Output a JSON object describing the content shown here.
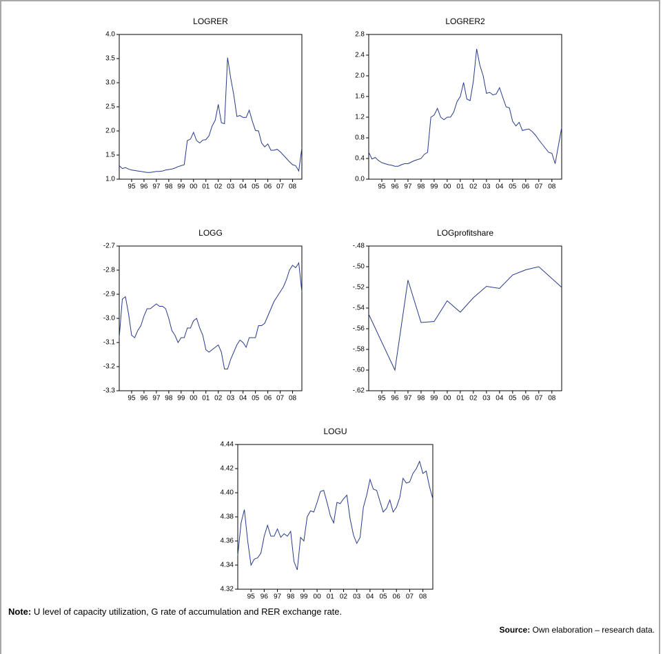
{
  "chart_data": [
    {
      "type": "line",
      "title": "LOGRER",
      "color": "#27398a",
      "x": [
        1994,
        1994.25,
        1994.5,
        1994.75,
        1995,
        1995.25,
        1995.5,
        1995.75,
        1996,
        1996.25,
        1996.5,
        1996.75,
        1997,
        1997.25,
        1997.5,
        1997.75,
        1998,
        1998.25,
        1998.5,
        1998.75,
        1999,
        1999.25,
        1999.5,
        1999.75,
        2000,
        2000.25,
        2000.5,
        2000.75,
        2001,
        2001.25,
        2001.5,
        2001.75,
        2002,
        2002.25,
        2002.5,
        2002.75,
        2003,
        2003.25,
        2003.5,
        2003.75,
        2004,
        2004.25,
        2004.5,
        2004.75,
        2005,
        2005.25,
        2005.5,
        2005.75,
        2006,
        2006.25,
        2006.5,
        2006.75,
        2007,
        2007.25,
        2007.5,
        2007.75,
        2008,
        2008.25,
        2008.5,
        2008.75
      ],
      "values": [
        1.28,
        1.22,
        1.24,
        1.21,
        1.19,
        1.18,
        1.17,
        1.16,
        1.15,
        1.14,
        1.14,
        1.15,
        1.16,
        1.16,
        1.17,
        1.19,
        1.2,
        1.21,
        1.23,
        1.26,
        1.28,
        1.3,
        1.8,
        1.83,
        1.97,
        1.8,
        1.75,
        1.81,
        1.82,
        1.9,
        2.1,
        2.22,
        2.55,
        2.17,
        2.15,
        3.52,
        3.1,
        2.75,
        2.3,
        2.32,
        2.28,
        2.28,
        2.43,
        2.2,
        2.01,
        2.0,
        1.75,
        1.67,
        1.73,
        1.6,
        1.6,
        1.62,
        1.57,
        1.5,
        1.43,
        1.36,
        1.3,
        1.28,
        1.17,
        1.65
      ],
      "ylim": [
        1.0,
        4.0
      ],
      "yticks": [
        {
          "value": 1.0,
          "label": "1.0"
        },
        1.5,
        {
          "value": 2.0,
          "label": "2.0"
        },
        2.5,
        {
          "value": 3.0,
          "label": "3.0"
        },
        3.5,
        {
          "value": 4.0,
          "label": "4.0"
        }
      ],
      "xlim": [
        1994,
        2008.75
      ],
      "xticks": [
        {
          "value": 1995,
          "label": "95"
        },
        {
          "value": 1996,
          "label": "96"
        },
        {
          "value": 1997,
          "label": "97"
        },
        {
          "value": 1998,
          "label": "98"
        },
        {
          "value": 1999,
          "label": "99"
        },
        {
          "value": 2000,
          "label": "00"
        },
        {
          "value": 2001,
          "label": "01"
        },
        {
          "value": 2002,
          "label": "02"
        },
        {
          "value": 2003,
          "label": "03"
        },
        {
          "value": 2004,
          "label": "04"
        },
        {
          "value": 2005,
          "label": "05"
        },
        {
          "value": 2006,
          "label": "06"
        },
        {
          "value": 2007,
          "label": "07"
        },
        {
          "value": 2008,
          "label": "08"
        }
      ]
    },
    {
      "type": "line",
      "title": "LOGRER2",
      "color": "#27398a",
      "x": [
        1994,
        1994.25,
        1994.5,
        1994.75,
        1995,
        1995.25,
        1995.5,
        1995.75,
        1996,
        1996.25,
        1996.5,
        1996.75,
        1997,
        1997.25,
        1997.5,
        1997.75,
        1998,
        1998.25,
        1998.5,
        1998.75,
        1999,
        1999.25,
        1999.5,
        1999.75,
        2000,
        2000.25,
        2000.5,
        2000.75,
        2001,
        2001.25,
        2001.5,
        2001.75,
        2002,
        2002.25,
        2002.5,
        2002.75,
        2003,
        2003.25,
        2003.5,
        2003.75,
        2004,
        2004.25,
        2004.5,
        2004.75,
        2005,
        2005.25,
        2005.5,
        2005.75,
        2006,
        2006.25,
        2006.5,
        2006.75,
        2007,
        2007.25,
        2007.5,
        2007.75,
        2008,
        2008.25,
        2008.5,
        2008.75
      ],
      "values": [
        0.52,
        0.39,
        0.42,
        0.36,
        0.32,
        0.3,
        0.28,
        0.27,
        0.25,
        0.25,
        0.28,
        0.3,
        0.3,
        0.33,
        0.36,
        0.38,
        0.4,
        0.48,
        0.52,
        1.2,
        1.24,
        1.37,
        1.2,
        1.15,
        1.2,
        1.2,
        1.3,
        1.5,
        1.6,
        1.87,
        1.55,
        1.52,
        1.9,
        2.52,
        2.2,
        2.0,
        1.66,
        1.68,
        1.63,
        1.65,
        1.77,
        1.58,
        1.4,
        1.38,
        1.12,
        1.03,
        1.1,
        0.94,
        0.96,
        0.97,
        0.92,
        0.85,
        0.76,
        0.68,
        0.6,
        0.52,
        0.5,
        0.3,
        0.65,
        1.0
      ],
      "ylim": [
        0.0,
        2.8
      ],
      "yticks": [
        {
          "value": 0.0,
          "label": "0.0"
        },
        0.4,
        0.8,
        1.2,
        1.6,
        {
          "value": 2.0,
          "label": "2.0"
        },
        2.4,
        2.8
      ],
      "xlim": [
        1994,
        2008.75
      ],
      "xticks": [
        {
          "value": 1995,
          "label": "95"
        },
        {
          "value": 1996,
          "label": "96"
        },
        {
          "value": 1997,
          "label": "97"
        },
        {
          "value": 1998,
          "label": "98"
        },
        {
          "value": 1999,
          "label": "99"
        },
        {
          "value": 2000,
          "label": "00"
        },
        {
          "value": 2001,
          "label": "01"
        },
        {
          "value": 2002,
          "label": "02"
        },
        {
          "value": 2003,
          "label": "03"
        },
        {
          "value": 2004,
          "label": "04"
        },
        {
          "value": 2005,
          "label": "05"
        },
        {
          "value": 2006,
          "label": "06"
        },
        {
          "value": 2007,
          "label": "07"
        },
        {
          "value": 2008,
          "label": "08"
        }
      ]
    },
    {
      "type": "line",
      "title": "LOGG",
      "color": "#27398a",
      "x": [
        1994,
        1994.25,
        1994.5,
        1994.75,
        1995,
        1995.25,
        1995.5,
        1995.75,
        1996,
        1996.25,
        1996.5,
        1996.75,
        1997,
        1997.25,
        1997.5,
        1997.75,
        1998,
        1998.25,
        1998.5,
        1998.75,
        1999,
        1999.25,
        1999.5,
        1999.75,
        2000,
        2000.25,
        2000.5,
        2000.75,
        2001,
        2001.25,
        2001.5,
        2001.75,
        2002,
        2002.25,
        2002.5,
        2002.75,
        2003,
        2003.25,
        2003.5,
        2003.75,
        2004,
        2004.25,
        2004.5,
        2004.75,
        2005,
        2005.25,
        2005.5,
        2005.75,
        2006,
        2006.25,
        2006.5,
        2006.75,
        2007,
        2007.25,
        2007.5,
        2007.75,
        2008,
        2008.25,
        2008.5,
        2008.75
      ],
      "values": [
        -3.08,
        -2.92,
        -2.91,
        -2.98,
        -3.07,
        -3.08,
        -3.05,
        -3.03,
        -2.99,
        -2.96,
        -2.96,
        -2.95,
        -2.94,
        -2.95,
        -2.95,
        -2.96,
        -3.0,
        -3.05,
        -3.07,
        -3.1,
        -3.08,
        -3.08,
        -3.04,
        -3.04,
        -3.01,
        -3.0,
        -3.04,
        -3.07,
        -3.13,
        -3.14,
        -3.13,
        -3.12,
        -3.11,
        -3.14,
        -3.21,
        -3.21,
        -3.17,
        -3.14,
        -3.11,
        -3.09,
        -3.1,
        -3.12,
        -3.08,
        -3.08,
        -3.08,
        -3.03,
        -3.03,
        -3.02,
        -2.99,
        -2.96,
        -2.93,
        -2.91,
        -2.89,
        -2.87,
        -2.84,
        -2.8,
        -2.78,
        -2.79,
        -2.77,
        -2.89
      ],
      "ylim": [
        -3.3,
        -2.7
      ],
      "yticks": [
        -3.3,
        -3.2,
        -3.1,
        {
          "value": -3.0,
          "label": "-3.0"
        },
        -2.9,
        -2.8,
        -2.7
      ],
      "xlim": [
        1994,
        2008.75
      ],
      "xticks": [
        {
          "value": 1995,
          "label": "95"
        },
        {
          "value": 1996,
          "label": "96"
        },
        {
          "value": 1997,
          "label": "97"
        },
        {
          "value": 1998,
          "label": "98"
        },
        {
          "value": 1999,
          "label": "99"
        },
        {
          "value": 2000,
          "label": "00"
        },
        {
          "value": 2001,
          "label": "01"
        },
        {
          "value": 2002,
          "label": "02"
        },
        {
          "value": 2003,
          "label": "03"
        },
        {
          "value": 2004,
          "label": "04"
        },
        {
          "value": 2005,
          "label": "05"
        },
        {
          "value": 2006,
          "label": "06"
        },
        {
          "value": 2007,
          "label": "07"
        },
        {
          "value": 2008,
          "label": "08"
        }
      ]
    },
    {
      "type": "line",
      "title": "LOGprofitshare",
      "color": "#27398a",
      "x": [
        1994,
        1996,
        1997,
        1998,
        1999,
        2000,
        2001,
        2002,
        2003,
        2004,
        2005,
        2006,
        2007,
        2008.75
      ],
      "values": [
        -0.546,
        -0.6,
        -0.513,
        -0.554,
        -0.553,
        -0.533,
        -0.544,
        -0.53,
        -0.519,
        -0.521,
        -0.508,
        -0.503,
        -0.5,
        -0.52
      ],
      "ylim": [
        -0.62,
        -0.48
      ],
      "yticks": [
        {
          "value": -0.62,
          "label": "-.62"
        },
        {
          "value": -0.6,
          "label": "-.60"
        },
        {
          "value": -0.58,
          "label": "-.58"
        },
        {
          "value": -0.56,
          "label": "-.56"
        },
        {
          "value": -0.54,
          "label": "-.54"
        },
        {
          "value": -0.52,
          "label": "-.52"
        },
        {
          "value": -0.5,
          "label": "-.50"
        },
        {
          "value": -0.48,
          "label": "-.48"
        }
      ],
      "xlim": [
        1994,
        2008.75
      ],
      "xticks": [
        {
          "value": 1995,
          "label": "95"
        },
        {
          "value": 1996,
          "label": "96"
        },
        {
          "value": 1997,
          "label": "97"
        },
        {
          "value": 1998,
          "label": "98"
        },
        {
          "value": 1999,
          "label": "99"
        },
        {
          "value": 2000,
          "label": "00"
        },
        {
          "value": 2001,
          "label": "01"
        },
        {
          "value": 2002,
          "label": "02"
        },
        {
          "value": 2003,
          "label": "03"
        },
        {
          "value": 2004,
          "label": "04"
        },
        {
          "value": 2005,
          "label": "05"
        },
        {
          "value": 2006,
          "label": "06"
        },
        {
          "value": 2007,
          "label": "07"
        },
        {
          "value": 2008,
          "label": "08"
        }
      ]
    },
    {
      "type": "line",
      "title": "LOGU",
      "color": "#27398a",
      "x": [
        1994,
        1994.25,
        1994.5,
        1994.75,
        1995,
        1995.25,
        1995.5,
        1995.75,
        1996,
        1996.25,
        1996.5,
        1996.75,
        1997,
        1997.25,
        1997.5,
        1997.75,
        1998,
        1998.25,
        1998.5,
        1998.75,
        1999,
        1999.25,
        1999.5,
        1999.75,
        2000,
        2000.25,
        2000.5,
        2000.75,
        2001,
        2001.25,
        2001.5,
        2001.75,
        2002,
        2002.25,
        2002.5,
        2002.75,
        2003,
        2003.25,
        2003.5,
        2003.75,
        2004,
        2004.25,
        2004.5,
        2004.75,
        2005,
        2005.25,
        2005.5,
        2005.75,
        2006,
        2006.25,
        2006.5,
        2006.75,
        2007,
        2007.25,
        2007.5,
        2007.75,
        2008,
        2008.25,
        2008.5,
        2008.75
      ],
      "values": [
        4.348,
        4.375,
        4.386,
        4.36,
        4.34,
        4.345,
        4.346,
        4.35,
        4.364,
        4.373,
        4.364,
        4.364,
        4.37,
        4.363,
        4.366,
        4.364,
        4.368,
        4.343,
        4.336,
        4.363,
        4.36,
        4.38,
        4.385,
        4.384,
        4.392,
        4.401,
        4.402,
        4.392,
        4.381,
        4.375,
        4.392,
        4.391,
        4.395,
        4.398,
        4.378,
        4.365,
        4.358,
        4.363,
        4.388,
        4.398,
        4.411,
        4.403,
        4.402,
        4.393,
        4.384,
        4.387,
        4.394,
        4.384,
        4.388,
        4.396,
        4.412,
        4.408,
        4.409,
        4.416,
        4.42,
        4.426,
        4.416,
        4.418,
        4.405,
        4.395
      ],
      "ylim": [
        4.32,
        4.44
      ],
      "yticks": [
        4.32,
        4.34,
        4.36,
        4.38,
        {
          "value": 4.4,
          "label": "4.40"
        },
        4.42,
        4.44
      ],
      "xlim": [
        1994,
        2008.75
      ],
      "xticks": [
        {
          "value": 1995,
          "label": "95"
        },
        {
          "value": 1996,
          "label": "96"
        },
        {
          "value": 1997,
          "label": "97"
        },
        {
          "value": 1998,
          "label": "98"
        },
        {
          "value": 1999,
          "label": "99"
        },
        {
          "value": 2000,
          "label": "00"
        },
        {
          "value": 2001,
          "label": "01"
        },
        {
          "value": 2002,
          "label": "02"
        },
        {
          "value": 2003,
          "label": "03"
        },
        {
          "value": 2004,
          "label": "04"
        },
        {
          "value": 2005,
          "label": "05"
        },
        {
          "value": 2006,
          "label": "06"
        },
        {
          "value": 2007,
          "label": "07"
        },
        {
          "value": 2008,
          "label": "08"
        }
      ]
    }
  ],
  "note": {
    "label": "Note:",
    "text": "U level of capacity utilization, G rate of accumulation and RER exchange rate."
  },
  "source": {
    "label": "Source:",
    "text": "Own elaboration – research data."
  }
}
